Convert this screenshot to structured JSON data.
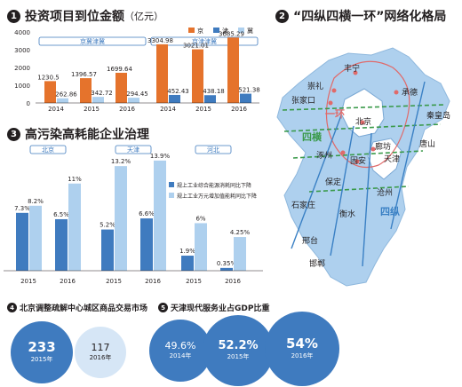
{
  "panel1": {
    "num": "1",
    "title": "投资项目到位金额",
    "unit": "（亿元）"
  },
  "panel2": {
    "num": "2",
    "title": "“四纵四横一环”网络化格局"
  },
  "panel3": {
    "num": "3",
    "title": "高污染高耗能企业治理"
  },
  "panel4": {
    "num": "4",
    "title": "北京调整疏解中心城区商品交易市场"
  },
  "panel5": {
    "num": "5",
    "title": "天津现代服务业占GDP比重"
  },
  "chart_data": [
    {
      "type": "bar",
      "legend": [
        "京",
        "津",
        "冀"
      ],
      "colors": {
        "京": "#e5732c",
        "津": "#3f7bbf",
        "冀": "#aed0ee"
      },
      "yticks": [
        0,
        1000,
        2000,
        3000,
        4000
      ],
      "ylim": [
        0,
        4000
      ],
      "groups": [
        {
          "label": "京冀津冀",
          "pair": [
            "京",
            "冀"
          ],
          "categories": [
            "2014",
            "2015",
            "2016"
          ],
          "values": [
            [
              1230.5,
              262.86
            ],
            [
              1396.57,
              342.72
            ],
            [
              1699.64,
              294.45
            ]
          ]
        },
        {
          "label": "京津津冀",
          "pair": [
            "京",
            "津"
          ],
          "categories": [
            "2014",
            "2015",
            "2016"
          ],
          "values": [
            [
              3304.98,
              452.43
            ],
            [
              3021.01,
              438.18
            ],
            [
              3685.29,
              521.38
            ]
          ]
        }
      ]
    },
    {
      "type": "bar",
      "legend": [
        "规上工业综合能源消耗同比下降",
        "规上工业万元增加值能耗同比下降"
      ],
      "regions": [
        {
          "label": "北京",
          "categories": [
            "2015",
            "2016"
          ],
          "values": [
            [
              7.3,
              8.2
            ],
            [
              6.5,
              11
            ]
          ],
          "value_labels": [
            [
              "7.3%",
              "8.2%"
            ],
            [
              "6.5%",
              "11%"
            ]
          ]
        },
        {
          "label": "天津",
          "categories": [
            "2015",
            "2016"
          ],
          "values": [
            [
              5.2,
              13.2
            ],
            [
              6.6,
              13.9
            ]
          ],
          "value_labels": [
            [
              "5.2%",
              "13.2%"
            ],
            [
              "6.6%",
              "13.9%"
            ]
          ]
        },
        {
          "label": "河北",
          "categories": [
            "2015",
            "2016"
          ],
          "values": [
            [
              1.9,
              6
            ],
            [
              0.35,
              4.25
            ]
          ],
          "value_labels": [
            [
              "1.9%",
              "6%"
            ],
            [
              "0.35%",
              "4.25%"
            ]
          ]
        }
      ]
    },
    {
      "type": "bubble",
      "values": [
        233,
        117
      ],
      "labels": [
        "2015年",
        "2016年"
      ]
    },
    {
      "type": "bubble",
      "values": [
        "49.6%",
        "52.2%",
        "54%"
      ],
      "labels": [
        "2014年",
        "2015年",
        "2016年"
      ]
    }
  ],
  "map": {
    "cities": [
      "丰宁",
      "崇礼",
      "张家口",
      "承德",
      "秦皇岛",
      "北京",
      "唐山",
      "涿州",
      "廊坊",
      "固安",
      "天津",
      "保定",
      "石家庄",
      "沧州",
      "衡水",
      "邢台",
      "邯郸"
    ],
    "labels": {
      "ring": "一环",
      "heng": "四横",
      "zong": "四纵"
    }
  }
}
